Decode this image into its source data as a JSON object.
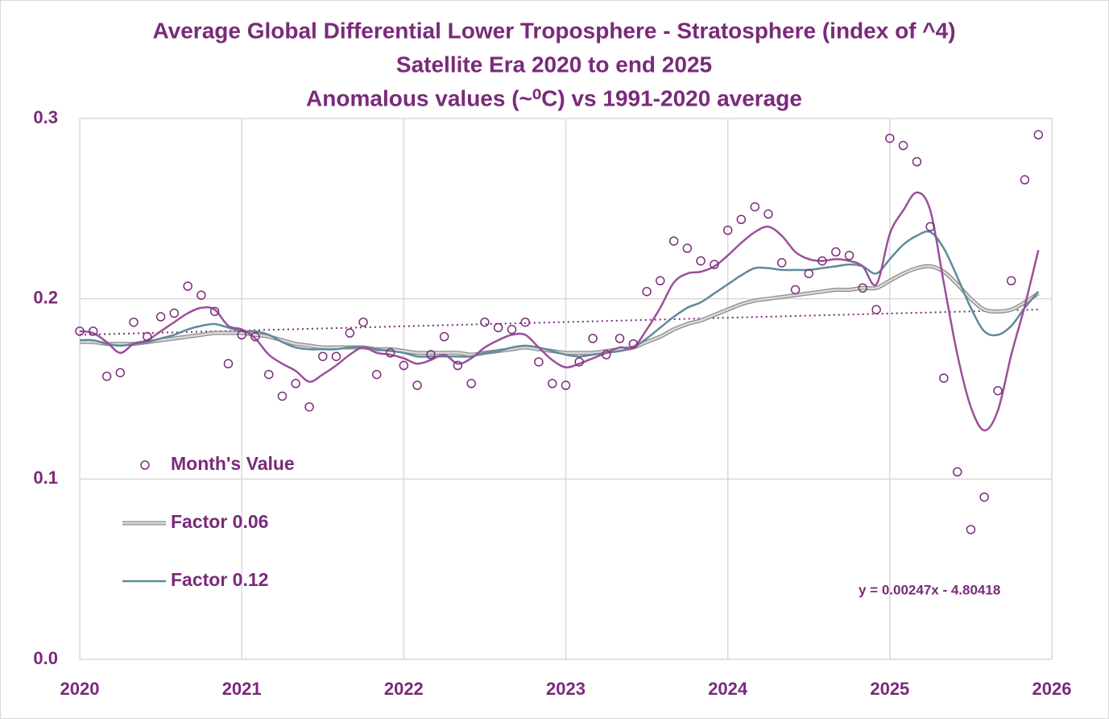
{
  "chart_data": {
    "type": "scatter",
    "title": [
      "Average Global Differential Lower Troposphere - Stratosphere (index of ^4)",
      "Satellite Era 2020 to end 2025",
      "Anomalous values (~⁰C) vs 1991-2020 average"
    ],
    "x": [
      2020,
      2020.083,
      2020.167,
      2020.25,
      2020.333,
      2020.417,
      2020.5,
      2020.583,
      2020.667,
      2020.75,
      2020.833,
      2020.917,
      2021,
      2021.083,
      2021.167,
      2021.25,
      2021.333,
      2021.417,
      2021.5,
      2021.583,
      2021.667,
      2021.75,
      2021.833,
      2021.917,
      2022,
      2022.083,
      2022.167,
      2022.25,
      2022.333,
      2022.417,
      2022.5,
      2022.583,
      2022.667,
      2022.75,
      2022.833,
      2022.917,
      2023,
      2023.083,
      2023.167,
      2023.25,
      2023.333,
      2023.417,
      2023.5,
      2023.583,
      2023.667,
      2023.75,
      2023.833,
      2023.917,
      2024,
      2024.083,
      2024.167,
      2024.25,
      2024.333,
      2024.417,
      2024.5,
      2024.583,
      2024.667,
      2024.75,
      2024.833,
      2024.917,
      2025,
      2025.083,
      2025.167,
      2025.25,
      2025.333,
      2025.417,
      2025.5,
      2025.583,
      2025.667,
      2025.75,
      2025.833,
      2025.917
    ],
    "series": [
      {
        "name": "Month's Value",
        "type": "scatter",
        "color": "#7b2d7b",
        "values": [
          0.182,
          0.182,
          0.157,
          0.159,
          0.187,
          0.179,
          0.19,
          0.192,
          0.207,
          0.202,
          0.193,
          0.164,
          0.18,
          0.179,
          0.158,
          0.146,
          0.153,
          0.14,
          0.168,
          0.168,
          0.181,
          0.187,
          0.158,
          0.17,
          0.163,
          0.152,
          0.169,
          0.179,
          0.163,
          0.153,
          0.187,
          0.184,
          0.183,
          0.187,
          0.165,
          0.153,
          0.152,
          0.165,
          0.178,
          0.169,
          0.178,
          0.175,
          0.204,
          0.21,
          0.232,
          0.228,
          0.221,
          0.219,
          0.238,
          0.244,
          0.251,
          0.247,
          0.22,
          0.205,
          0.214,
          0.221,
          0.226,
          0.224,
          0.206,
          0.194,
          0.289,
          0.285,
          0.276,
          0.24,
          0.156,
          0.104,
          0.072,
          0.09,
          0.149,
          0.21,
          0.266,
          0.291
        ]
      },
      {
        "type": "line",
        "color": "#9b4f9b",
        "values": [
          0.182,
          0.181,
          0.176,
          0.17,
          0.175,
          0.177,
          0.182,
          0.187,
          0.192,
          0.195,
          0.194,
          0.185,
          0.183,
          0.178,
          0.169,
          0.164,
          0.16,
          0.154,
          0.158,
          0.163,
          0.169,
          0.173,
          0.17,
          0.169,
          0.167,
          0.164,
          0.166,
          0.169,
          0.164,
          0.167,
          0.173,
          0.177,
          0.18,
          0.18,
          0.173,
          0.166,
          0.162,
          0.164,
          0.167,
          0.17,
          0.173,
          0.173,
          0.183,
          0.195,
          0.209,
          0.214,
          0.215,
          0.218,
          0.224,
          0.231,
          0.237,
          0.24,
          0.235,
          0.226,
          0.222,
          0.221,
          0.222,
          0.221,
          0.218,
          0.208,
          0.236,
          0.249,
          0.259,
          0.249,
          0.209,
          0.169,
          0.14,
          0.127,
          0.138,
          0.169,
          0.196,
          0.227
        ]
      },
      {
        "name": "Factor 0.06",
        "type": "line",
        "color": "#a6a6a6",
        "values": [
          0.176,
          0.176,
          0.175,
          0.175,
          0.175,
          0.176,
          0.177,
          0.178,
          0.179,
          0.18,
          0.181,
          0.181,
          0.181,
          0.18,
          0.179,
          0.177,
          0.175,
          0.174,
          0.173,
          0.173,
          0.173,
          0.173,
          0.172,
          0.172,
          0.171,
          0.17,
          0.17,
          0.17,
          0.17,
          0.169,
          0.17,
          0.171,
          0.172,
          0.173,
          0.172,
          0.171,
          0.17,
          0.17,
          0.17,
          0.171,
          0.172,
          0.173,
          0.176,
          0.179,
          0.183,
          0.186,
          0.188,
          0.191,
          0.194,
          0.197,
          0.199,
          0.2,
          0.201,
          0.202,
          0.203,
          0.204,
          0.205,
          0.205,
          0.206,
          0.206,
          0.21,
          0.214,
          0.217,
          0.218,
          0.215,
          0.208,
          0.2,
          0.194,
          0.193,
          0.194,
          0.198,
          0.203
        ]
      },
      {
        "name": "Factor 0.12",
        "type": "line",
        "color": "#5f8a9c",
        "values": [
          0.177,
          0.177,
          0.175,
          0.174,
          0.175,
          0.176,
          0.178,
          0.18,
          0.183,
          0.185,
          0.186,
          0.184,
          0.182,
          0.182,
          0.18,
          0.176,
          0.173,
          0.172,
          0.172,
          0.172,
          0.173,
          0.173,
          0.172,
          0.171,
          0.17,
          0.168,
          0.168,
          0.168,
          0.168,
          0.168,
          0.17,
          0.171,
          0.173,
          0.174,
          0.173,
          0.171,
          0.169,
          0.168,
          0.169,
          0.17,
          0.171,
          0.173,
          0.178,
          0.184,
          0.19,
          0.195,
          0.198,
          0.203,
          0.208,
          0.213,
          0.217,
          0.217,
          0.216,
          0.216,
          0.216,
          0.217,
          0.218,
          0.219,
          0.218,
          0.214,
          0.222,
          0.23,
          0.235,
          0.237,
          0.228,
          0.212,
          0.195,
          0.182,
          0.18,
          0.185,
          0.195,
          0.204
        ]
      }
    ],
    "trendline": {
      "label": "y = 0.00247x - 4.80418",
      "color": "#7b2d7b",
      "x": [
        2020,
        2025.917
      ],
      "values": [
        0.18,
        0.194
      ]
    },
    "xlim": [
      2020,
      2026
    ],
    "xticks": [
      2020,
      2021,
      2022,
      2023,
      2024,
      2025,
      2026
    ],
    "ylim": [
      0,
      0.3
    ],
    "yticks": [
      {
        "value": 0,
        "label": "0.0"
      },
      0.1,
      0.2,
      0.3
    ],
    "grid": true
  }
}
